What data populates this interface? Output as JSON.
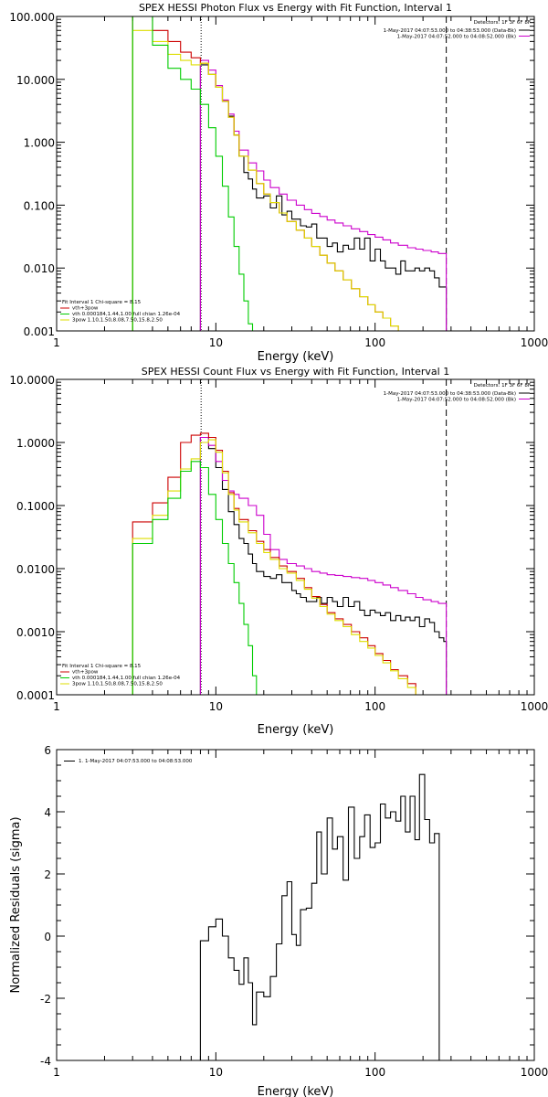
{
  "chart_data": [
    {
      "type": "line",
      "title": "SPEX HESSI Photon Flux vs Energy with Fit Function, Interval 1",
      "xlabel": "Energy (keV)",
      "ylabel": "",
      "xscale": "log",
      "yscale": "log",
      "xlim": [
        1,
        1000
      ],
      "ylim": [
        0.001,
        100
      ],
      "x_ticks": [
        "1",
        "10",
        "100",
        "1000"
      ],
      "y_ticks": [
        "0.001",
        "0.010",
        "0.100",
        "1.000",
        "10.000",
        "100.000"
      ],
      "detectors": "Detectors: 1F 3F 6F 8F",
      "legend_right": [
        {
          "text": "1-May-2017 04:07:53.000 to 04:38:53.000 (Data-Bk)",
          "color": "#000000"
        },
        {
          "text": "1-May-2017 04:07:52.000 to 04:08:52.000 (Bk)",
          "color": "#cc00cc"
        }
      ],
      "legend_left": [
        {
          "text": "Fit Interval  1    Chi-square = 8.15",
          "color": "#000000"
        },
        {
          "text": "vth+3pow",
          "color": "#cc0000"
        },
        {
          "text": "vth 0.000184,1.44,1.00   full chian 1.26e-04",
          "color": "#00cc00"
        },
        {
          "text": "3pow 1.10,1.50,8.08,7.50,15.8,2.50",
          "color": "#dddd00"
        }
      ],
      "markers": [
        {
          "x": 8.08,
          "style": "dotted"
        },
        {
          "x": 280,
          "style": "dashed"
        }
      ],
      "series": [
        {
          "color": "#000000",
          "edges": [
            8,
            9,
            10,
            11,
            12,
            13,
            14,
            15,
            16,
            17,
            18,
            20,
            22,
            24,
            26,
            28,
            30,
            32,
            34,
            37,
            40,
            43,
            46,
            50,
            54,
            58,
            63,
            68,
            74,
            80,
            86,
            93,
            100,
            108,
            116,
            125,
            135,
            145,
            155,
            166,
            178,
            190,
            205,
            220,
            236,
            253,
            270,
            280
          ],
          "values": [
            17,
            12,
            7.5,
            4.5,
            2.6,
            1.3,
            0.6,
            0.33,
            0.26,
            0.18,
            0.13,
            0.14,
            0.09,
            0.14,
            0.07,
            0.08,
            0.06,
            0.06,
            0.047,
            0.045,
            0.05,
            0.03,
            0.03,
            0.022,
            0.025,
            0.018,
            0.023,
            0.02,
            0.03,
            0.02,
            0.03,
            0.013,
            0.02,
            0.013,
            0.01,
            0.01,
            0.008,
            0.013,
            0.009,
            0.009,
            0.01,
            0.009,
            0.01,
            0.009,
            0.007,
            0.005,
            0.005
          ]
        },
        {
          "color": "#cc00cc",
          "edges": [
            8,
            9,
            10,
            11,
            12,
            13,
            14,
            16,
            18,
            20,
            22,
            25,
            28,
            32,
            36,
            40,
            45,
            50,
            56,
            63,
            71,
            80,
            90,
            100,
            112,
            125,
            140,
            160,
            180,
            200,
            225,
            250,
            280
          ],
          "values": [
            20,
            14,
            8,
            4.7,
            2.8,
            1.5,
            0.75,
            0.47,
            0.35,
            0.25,
            0.19,
            0.15,
            0.12,
            0.1,
            0.085,
            0.074,
            0.066,
            0.058,
            0.052,
            0.047,
            0.042,
            0.038,
            0.034,
            0.031,
            0.028,
            0.025,
            0.023,
            0.021,
            0.02,
            0.019,
            0.018,
            0.017
          ]
        },
        {
          "color": "#cc0000",
          "edges": [
            3,
            4,
            5,
            6,
            7,
            8,
            9,
            10,
            11,
            12,
            13,
            14,
            16,
            18,
            20,
            22,
            25,
            28,
            32,
            36,
            40,
            45,
            50,
            56,
            63,
            71,
            80,
            90,
            100,
            112,
            125,
            140,
            160,
            180,
            200,
            225,
            250,
            280
          ],
          "values": [
            100,
            60,
            40,
            27,
            22,
            18,
            12,
            7.5,
            4.5,
            2.5,
            1.3,
            0.6,
            0.36,
            0.22,
            0.15,
            0.11,
            0.075,
            0.055,
            0.04,
            0.03,
            0.022,
            0.016,
            0.012,
            0.009,
            0.0065,
            0.0047,
            0.0035,
            0.0026,
            0.002,
            0.0016,
            0.0012,
            0.001,
            0.001,
            0.001,
            0.001,
            0.001,
            0.001
          ]
        },
        {
          "color": "#dddd00",
          "edges": [
            3,
            4,
            5,
            6,
            7,
            8,
            9,
            10,
            11,
            12,
            13,
            14,
            16,
            18,
            20,
            22,
            25,
            28,
            32,
            36,
            40,
            45,
            50,
            56,
            63,
            71,
            80,
            90,
            100,
            112,
            125,
            140
          ],
          "values": [
            60,
            40,
            25,
            20,
            17,
            18,
            12,
            7.5,
            4.5,
            2.5,
            1.3,
            0.6,
            0.36,
            0.22,
            0.15,
            0.11,
            0.075,
            0.055,
            0.04,
            0.03,
            0.022,
            0.016,
            0.012,
            0.009,
            0.0065,
            0.0047,
            0.0035,
            0.0026,
            0.002,
            0.0016,
            0.0012
          ]
        },
        {
          "color": "#00cc00",
          "edges": [
            3,
            4,
            5,
            6,
            7,
            8,
            9,
            10,
            11,
            12,
            13,
            14,
            15,
            16,
            17,
            18
          ],
          "values": [
            100,
            35,
            15,
            10,
            7,
            4,
            1.7,
            0.6,
            0.2,
            0.065,
            0.022,
            0.008,
            0.003,
            0.0013,
            0.001
          ]
        }
      ]
    },
    {
      "type": "line",
      "title": "SPEX HESSI Count Flux vs Energy with Fit Function, Interval 1",
      "xlabel": "Energy (keV)",
      "ylabel": "",
      "xscale": "log",
      "yscale": "log",
      "xlim": [
        1,
        1000
      ],
      "ylim": [
        0.0001,
        10
      ],
      "x_ticks": [
        "1",
        "10",
        "100",
        "1000"
      ],
      "y_ticks": [
        "0.0001",
        "0.0010",
        "0.0100",
        "0.1000",
        "1.0000",
        "10.0000"
      ],
      "detectors": "Detectors: 1F 3F 6F 8F",
      "legend_right": [
        {
          "text": "1-May-2017 04:07:53.000 to 04:38:53.000 (Data-Bk)",
          "color": "#000000"
        },
        {
          "text": "1-May-2017 04:07:52.000 to 04:08:52.000 (Bk)",
          "color": "#cc00cc"
        }
      ],
      "legend_left": [
        {
          "text": "Fit Interval  1    Chi-square = 8.15",
          "color": "#000000"
        },
        {
          "text": "vth+3pow",
          "color": "#cc0000"
        },
        {
          "text": "vth 0.000184,1.44,1.00   full chian 1.26e-04",
          "color": "#00cc00"
        },
        {
          "text": "3pow 1.10,1.50,8.08,7.50,15.8,2.50",
          "color": "#dddd00"
        }
      ],
      "markers": [
        {
          "x": 8.08,
          "style": "dotted"
        },
        {
          "x": 280,
          "style": "dashed"
        }
      ],
      "series": [
        {
          "color": "#000000",
          "edges": [
            8,
            9,
            10,
            11,
            12,
            13,
            14,
            15,
            16,
            17,
            18,
            20,
            22,
            24,
            26,
            28,
            30,
            32,
            34,
            37,
            40,
            43,
            46,
            50,
            54,
            58,
            63,
            68,
            74,
            80,
            86,
            93,
            100,
            108,
            116,
            125,
            135,
            145,
            155,
            166,
            178,
            190,
            205,
            220,
            236,
            253,
            270,
            280
          ],
          "values": [
            1.2,
            0.8,
            0.4,
            0.18,
            0.08,
            0.05,
            0.03,
            0.025,
            0.017,
            0.012,
            0.009,
            0.0075,
            0.007,
            0.008,
            0.006,
            0.006,
            0.0045,
            0.004,
            0.0035,
            0.003,
            0.003,
            0.0035,
            0.0028,
            0.0035,
            0.003,
            0.0025,
            0.0035,
            0.0025,
            0.003,
            0.0022,
            0.0018,
            0.0022,
            0.002,
            0.0018,
            0.002,
            0.0015,
            0.0018,
            0.0015,
            0.0017,
            0.0015,
            0.0017,
            0.0012,
            0.0016,
            0.0014,
            0.001,
            0.0008,
            0.0007
          ]
        },
        {
          "color": "#cc00cc",
          "edges": [
            8,
            9,
            10,
            11,
            12,
            13,
            14,
            16,
            18,
            20,
            22,
            25,
            28,
            32,
            36,
            40,
            45,
            50,
            56,
            63,
            71,
            80,
            90,
            100,
            112,
            125,
            140,
            160,
            180,
            200,
            225,
            250,
            280
          ],
          "values": [
            1.2,
            0.9,
            0.5,
            0.25,
            0.17,
            0.15,
            0.13,
            0.1,
            0.07,
            0.035,
            0.02,
            0.014,
            0.012,
            0.011,
            0.01,
            0.009,
            0.0085,
            0.008,
            0.0078,
            0.0075,
            0.0072,
            0.007,
            0.0065,
            0.006,
            0.0055,
            0.005,
            0.0045,
            0.004,
            0.0035,
            0.0032,
            0.003,
            0.0028
          ]
        },
        {
          "color": "#cc0000",
          "edges": [
            3,
            4,
            5,
            6,
            7,
            8,
            9,
            10,
            11,
            12,
            13,
            14,
            16,
            18,
            20,
            22,
            25,
            28,
            32,
            36,
            40,
            45,
            50,
            56,
            63,
            71,
            80,
            90,
            100,
            112,
            125,
            140,
            160,
            180,
            200,
            225,
            250,
            280
          ],
          "values": [
            0.055,
            0.11,
            0.28,
            1.0,
            1.3,
            1.4,
            1.2,
            0.75,
            0.35,
            0.16,
            0.09,
            0.06,
            0.04,
            0.027,
            0.02,
            0.015,
            0.011,
            0.009,
            0.007,
            0.005,
            0.0036,
            0.0027,
            0.002,
            0.0016,
            0.0013,
            0.001,
            0.0008,
            0.0006,
            0.00045,
            0.00035,
            0.00025,
            0.0002,
            0.00015,
            0.0001,
            0.0001,
            0.0001,
            0.0001
          ]
        },
        {
          "color": "#dddd00",
          "edges": [
            3,
            4,
            5,
            6,
            7,
            8,
            9,
            10,
            11,
            12,
            13,
            14,
            16,
            18,
            20,
            22,
            25,
            28,
            32,
            36,
            40,
            45,
            50,
            56,
            63,
            71,
            80,
            90,
            100,
            112,
            125,
            140,
            160,
            180,
            200
          ],
          "values": [
            0.03,
            0.07,
            0.17,
            0.38,
            0.55,
            1.0,
            1.1,
            0.7,
            0.33,
            0.15,
            0.085,
            0.055,
            0.037,
            0.025,
            0.018,
            0.014,
            0.01,
            0.0085,
            0.0065,
            0.0047,
            0.0034,
            0.0025,
            0.0019,
            0.0015,
            0.0012,
            0.0009,
            0.0007,
            0.00055,
            0.00042,
            0.00032,
            0.00024,
            0.00018,
            0.00013,
            0.0001
          ]
        },
        {
          "color": "#00cc00",
          "edges": [
            3,
            4,
            5,
            6,
            7,
            8,
            9,
            10,
            11,
            12,
            13,
            14,
            15,
            16,
            17,
            18,
            19
          ],
          "values": [
            0.025,
            0.06,
            0.13,
            0.35,
            0.5,
            0.4,
            0.15,
            0.06,
            0.025,
            0.012,
            0.006,
            0.0028,
            0.0013,
            0.0006,
            0.0002,
            0.0001
          ]
        }
      ]
    },
    {
      "type": "line",
      "title": "",
      "xlabel": "Energy (keV)",
      "ylabel": "Normalized Residuals (sigma)",
      "xscale": "log",
      "yscale": "linear",
      "xlim": [
        1,
        1000
      ],
      "ylim": [
        -4,
        6
      ],
      "x_ticks": [
        "1",
        "10",
        "100",
        "1000"
      ],
      "y_ticks": [
        "-4",
        "-2",
        "0",
        "2",
        "4",
        "6"
      ],
      "legend": [
        {
          "text": "1.  1-May-2017 04:07:53.000 to 04:08:53.000",
          "color": "#000000"
        }
      ],
      "series": [
        {
          "color": "#000000",
          "edges": [
            8,
            9,
            10,
            11,
            12,
            13,
            14,
            15,
            16,
            17,
            18,
            20,
            22,
            24,
            26,
            28,
            30,
            32,
            34,
            37,
            40,
            43,
            46,
            50,
            54,
            58,
            63,
            68,
            74,
            80,
            86,
            93,
            100,
            108,
            116,
            125,
            135,
            145,
            155,
            166,
            178,
            190,
            205,
            220,
            236,
            253,
            270,
            280
          ],
          "values": [
            -0.15,
            0.3,
            0.55,
            0.0,
            -0.7,
            -1.1,
            -1.55,
            -0.7,
            -1.5,
            -2.85,
            -1.8,
            -1.95,
            -1.3,
            -0.25,
            1.3,
            1.75,
            0.05,
            -0.3,
            0.85,
            0.9,
            1.7,
            3.35,
            2.0,
            3.8,
            2.8,
            3.2,
            1.8,
            4.15,
            2.5,
            3.2,
            3.9,
            2.85,
            3.0,
            4.25,
            3.8,
            4.0,
            3.7,
            4.5,
            3.35,
            4.5,
            3.1,
            5.2,
            3.75,
            3.0,
            3.3,
            -4.0,
            -4.0
          ]
        }
      ]
    }
  ]
}
